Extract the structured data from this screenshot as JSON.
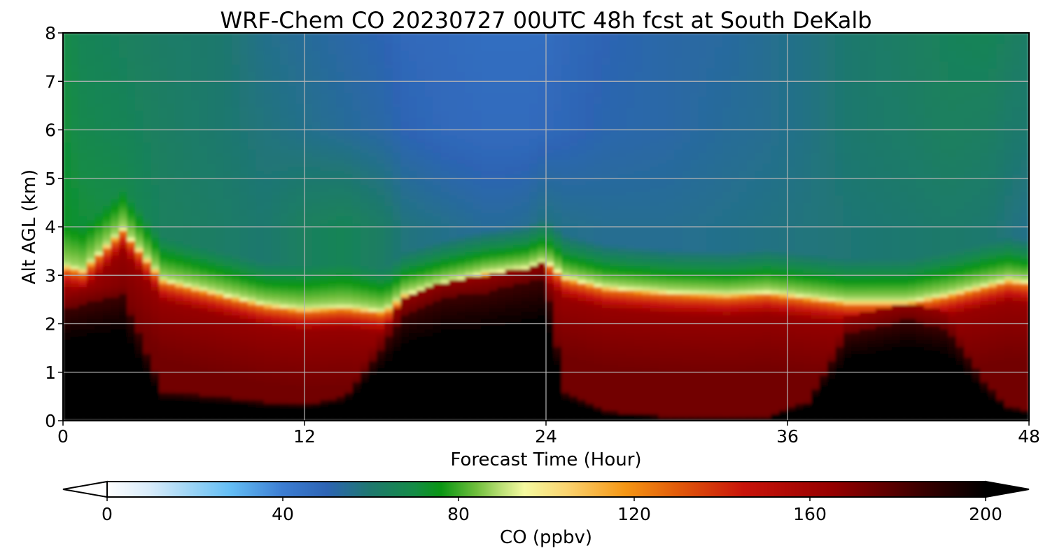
{
  "chart_data": {
    "type": "heatmap",
    "title": "WRF-Chem CO  20230727 00UTC 48h fcst at South DeKalb",
    "xlabel": "Forecast Time (Hour)",
    "ylabel": "Alt AGL (km)",
    "xlim": [
      0,
      48
    ],
    "ylim": [
      0,
      8
    ],
    "x_ticks": [
      "0",
      "12",
      "24",
      "36",
      "48"
    ],
    "y_ticks": [
      "0",
      "1",
      "2",
      "3",
      "4",
      "5",
      "6",
      "7",
      "8"
    ],
    "grid": true,
    "colorbar": {
      "label": "CO  (ppbv)",
      "range": [
        0,
        200
      ],
      "extend": "both",
      "ticks": [
        "0",
        "40",
        "80",
        "120",
        "160",
        "200"
      ]
    },
    "x": [
      0,
      1,
      3,
      5,
      8,
      10,
      12,
      14,
      16,
      17,
      19,
      21,
      22,
      23,
      24,
      25,
      27,
      30,
      33,
      35,
      37,
      39,
      42,
      44,
      46,
      47,
      48
    ],
    "y_band_top_km": [
      3.2,
      3.1,
      3.95,
      2.9,
      2.6,
      2.4,
      2.3,
      2.35,
      2.25,
      2.6,
      2.85,
      3.05,
      3.1,
      3.15,
      3.3,
      2.95,
      2.75,
      2.65,
      2.6,
      2.65,
      2.55,
      2.45,
      2.45,
      2.6,
      2.8,
      2.9,
      2.85
    ],
    "surface_black_top_km": [
      2.3,
      2.4,
      2.6,
      0.6,
      0.5,
      0.4,
      0.35,
      0.5,
      1.6,
      2.2,
      2.55,
      2.65,
      2.75,
      2.85,
      2.95,
      0.6,
      0.2,
      0.1,
      0.08,
      0.1,
      0.4,
      1.8,
      2.1,
      1.9,
      0.7,
      0.3,
      0.2
    ],
    "free_troposphere_ppbv": [
      [
        70,
        66,
        64,
        62,
        60,
        56,
        54,
        52,
        50,
        48,
        47,
        46,
        46,
        46,
        46,
        48,
        50,
        52,
        53,
        55,
        57,
        60,
        63,
        65,
        66,
        64,
        62
      ],
      [
        72,
        68,
        66,
        63,
        60,
        58,
        56,
        54,
        52,
        50,
        48,
        47,
        47,
        47,
        48,
        49,
        51,
        52,
        54,
        55,
        57,
        60,
        62,
        64,
        63,
        61,
        60
      ],
      [
        74,
        72,
        70,
        64,
        62,
        60,
        64,
        66,
        62,
        58,
        56,
        54,
        54,
        55,
        58,
        56,
        55,
        55,
        56,
        57,
        58,
        59,
        60,
        61,
        60,
        58,
        56
      ]
    ],
    "free_troposphere_levels_km": [
      8,
      6,
      4
    ]
  }
}
